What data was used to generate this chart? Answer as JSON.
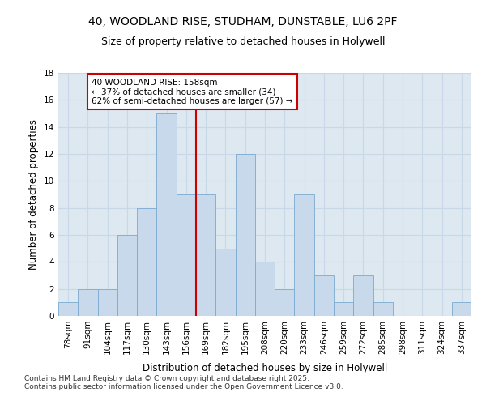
{
  "title_line1": "40, WOODLAND RISE, STUDHAM, DUNSTABLE, LU6 2PF",
  "title_line2": "Size of property relative to detached houses in Holywell",
  "xlabel": "Distribution of detached houses by size in Holywell",
  "ylabel": "Number of detached properties",
  "categories": [
    "78sqm",
    "91sqm",
    "104sqm",
    "117sqm",
    "130sqm",
    "143sqm",
    "156sqm",
    "169sqm",
    "182sqm",
    "195sqm",
    "208sqm",
    "220sqm",
    "233sqm",
    "246sqm",
    "259sqm",
    "272sqm",
    "285sqm",
    "298sqm",
    "311sqm",
    "324sqm",
    "337sqm"
  ],
  "values": [
    1,
    2,
    2,
    6,
    8,
    15,
    9,
    9,
    5,
    12,
    4,
    2,
    9,
    3,
    1,
    3,
    1,
    0,
    0,
    0,
    1
  ],
  "bar_color": "#c9d9ec",
  "bar_edge_color": "#7aaad0",
  "annotation_text": "40 WOODLAND RISE: 158sqm\n← 37% of detached houses are smaller (34)\n62% of semi-detached houses are larger (57) →",
  "annotation_box_color": "#ffffff",
  "annotation_box_edge": "#cc0000",
  "annotation_text_color": "#000000",
  "red_line_color": "#cc0000",
  "ylim": [
    0,
    18
  ],
  "yticks": [
    0,
    2,
    4,
    6,
    8,
    10,
    12,
    14,
    16,
    18
  ],
  "grid_color": "#c8d8e8",
  "bg_color": "#dde8f0",
  "footer_line1": "Contains HM Land Registry data © Crown copyright and database right 2025.",
  "footer_line2": "Contains public sector information licensed under the Open Government Licence v3.0.",
  "title_fontsize": 10,
  "subtitle_fontsize": 9,
  "tick_fontsize": 7.5,
  "ylabel_fontsize": 8.5,
  "xlabel_fontsize": 8.5,
  "annot_fontsize": 7.5,
  "footer_fontsize": 6.5
}
